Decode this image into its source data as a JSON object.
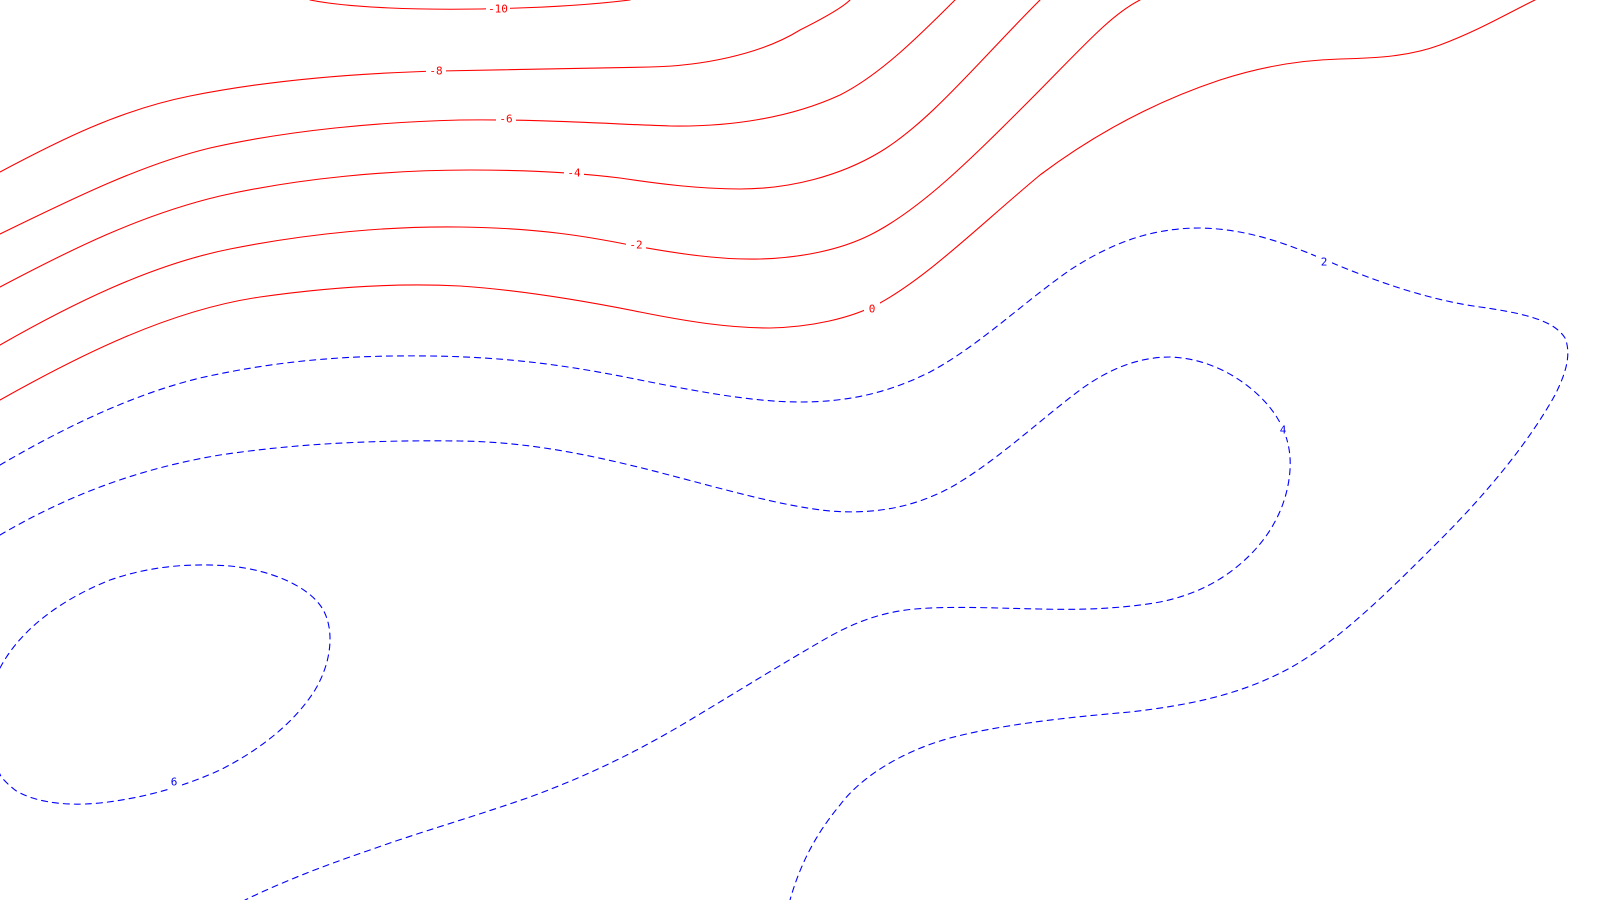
{
  "map": {
    "colors": {
      "negative": "#ff0000",
      "positive": "#0000ff",
      "background": "#ffffff"
    },
    "contours": [
      {
        "id": "c-neg-10",
        "level": -10,
        "label": "-10",
        "kind": "negative",
        "style": "solid"
      },
      {
        "id": "c-neg-8",
        "level": -8,
        "label": "-8",
        "kind": "negative",
        "style": "solid"
      },
      {
        "id": "c-neg-6",
        "level": -6,
        "label": "-6",
        "kind": "negative",
        "style": "solid"
      },
      {
        "id": "c-neg-4",
        "level": -4,
        "label": "-4",
        "kind": "negative",
        "style": "solid"
      },
      {
        "id": "c-neg-2",
        "level": -2,
        "label": "-2",
        "kind": "negative",
        "style": "solid"
      },
      {
        "id": "c-zero",
        "level": 0,
        "label": "0",
        "kind": "negative",
        "style": "solid"
      },
      {
        "id": "c-pos-2",
        "level": 2,
        "label": "2",
        "kind": "positive",
        "style": "dashed"
      },
      {
        "id": "c-pos-4",
        "level": 4,
        "label": "4",
        "kind": "positive",
        "style": "dashed"
      },
      {
        "id": "c-pos-6",
        "level": 6,
        "label": "6",
        "kind": "positive",
        "style": "dashed"
      }
    ]
  }
}
